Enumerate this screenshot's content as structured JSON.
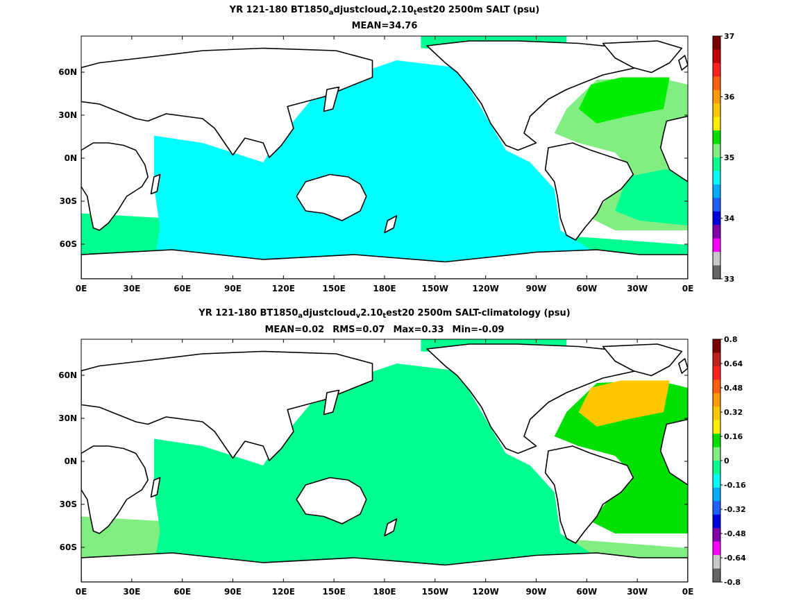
{
  "chart_data": [
    {
      "type": "heatmap",
      "title_parts": [
        "YR 121-180 BT1850",
        "a",
        "djustcloud",
        "v",
        "2.10",
        "t",
        "est20 2500m SALT (psu)"
      ],
      "subtitle": "MEAN=34.76",
      "x_ticks": [
        "0E",
        "30E",
        "60E",
        "90E",
        "120E",
        "150E",
        "180E",
        "150W",
        "120W",
        "90W",
        "60W",
        "30W",
        "0E"
      ],
      "y_ticks": [
        "60N",
        "30N",
        "0N",
        "30S",
        "60S"
      ],
      "colorbar": {
        "ticks": [
          "37",
          "36",
          "35",
          "34",
          "33"
        ],
        "colors": [
          "#7a0000",
          "#c00000",
          "#ff2020",
          "#ff6010",
          "#ff9a00",
          "#ffc800",
          "#ffee00",
          "#00e000",
          "#80ee80",
          "#00ff90",
          "#00ffff",
          "#00aaff",
          "#2060ff",
          "#0000dd",
          "#8000aa",
          "#ff00ff",
          "#c8c8c8",
          "#646464"
        ]
      },
      "fields": {
        "pacific": "#00ffff",
        "north_atlantic": "#00ee00",
        "atlantic": "#80ee80",
        "south_atlantic_core": "#00ff90",
        "southern_ocean": "#00ff90",
        "arctic": "#00ff90"
      }
    },
    {
      "type": "heatmap",
      "title_parts": [
        "YR 121-180 BT1850",
        "a",
        "djustcloud",
        "v",
        "2.10",
        "t",
        "est20 2500m SALT-climatology (psu)"
      ],
      "stats": [
        "MEAN=0.02",
        "RMS=0.07",
        "Max=0.33",
        "Min=-0.09"
      ],
      "x_ticks": [
        "0E",
        "30E",
        "60E",
        "90E",
        "120E",
        "150E",
        "180E",
        "150W",
        "120W",
        "90W",
        "60W",
        "30W",
        "0E"
      ],
      "y_ticks": [
        "60N",
        "30N",
        "0N",
        "30S",
        "60S"
      ],
      "colorbar": {
        "ticks": [
          "0.8",
          "0.64",
          "0.48",
          "0.32",
          "0.16",
          "0",
          "-0.16",
          "-0.32",
          "-0.48",
          "-0.64",
          "-0.8"
        ],
        "colors": [
          "#7a0000",
          "#c02020",
          "#ff2020",
          "#ff6010",
          "#ff9a00",
          "#ffc800",
          "#ffee00",
          "#00e000",
          "#80ee80",
          "#00ff90",
          "#00ffff",
          "#00aaff",
          "#2060ff",
          "#0000dd",
          "#8000aa",
          "#ff00ff",
          "#c8c8c8",
          "#646464"
        ]
      },
      "fields": {
        "pacific": "#00ff90",
        "north_atlantic": "#ffc800",
        "atlantic": "#00e000",
        "south_atlantic_core": "#00e000",
        "southern_ocean": "#80ee80",
        "arctic": "#00ff90"
      }
    }
  ]
}
